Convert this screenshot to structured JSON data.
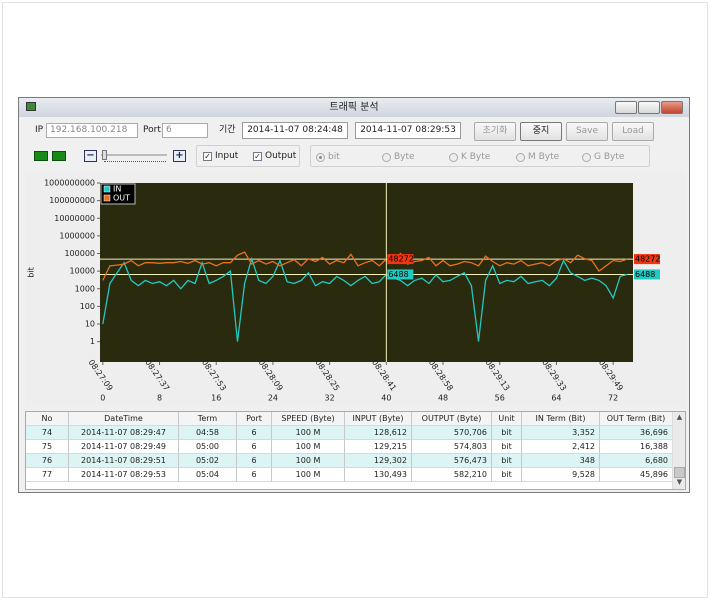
{
  "window": {
    "title": "트래픽 분석"
  },
  "controls": {
    "ip_label": "IP",
    "ip": "192.168.100.218",
    "port_label": "Port",
    "port": "6",
    "period_label": "기간",
    "start": "2014-11-07 08:24:48",
    "end": "2014-11-07 08:29:53",
    "buttons": [
      "초기화",
      "중지",
      "Save",
      "Load"
    ],
    "checkboxes": [
      "Input",
      "Output"
    ],
    "units": [
      "bit",
      "Byte",
      "K Byte",
      "M Byte",
      "G Byte"
    ]
  },
  "chart_data": {
    "type": "line",
    "ylabel": "bit",
    "log_y": true,
    "grid": false,
    "legend": "upper left",
    "background": "#2a2a0e",
    "cursor_x": 40,
    "x": [
      0,
      1,
      2,
      3,
      4,
      5,
      6,
      7,
      8,
      9,
      10,
      11,
      12,
      13,
      14,
      15,
      16,
      17,
      18,
      19,
      20,
      21,
      22,
      23,
      24,
      25,
      26,
      27,
      28,
      29,
      30,
      31,
      32,
      33,
      34,
      35,
      36,
      37,
      38,
      39,
      40,
      41,
      42,
      43,
      44,
      45,
      46,
      47,
      48,
      49,
      50,
      51,
      52,
      53,
      54,
      55,
      56,
      57,
      58,
      59,
      60,
      61,
      62,
      63,
      64,
      65,
      66,
      67,
      68,
      69,
      70,
      71,
      72,
      73,
      74
    ],
    "xlim": [
      -0.4,
      74.8
    ],
    "xticks": [
      0,
      8,
      16,
      24,
      32,
      40,
      48,
      56,
      64,
      72
    ],
    "xtick_times": [
      "08:27:09",
      "08:27:37",
      "08:27:53",
      "08:28:09",
      "08:28:25",
      "08:28:41",
      "08:28:58",
      "08:29:13",
      "08:29:33",
      "08:29:49"
    ],
    "ylim": [
      0.07,
      1000000000
    ],
    "yticks": [
      1,
      10,
      100,
      1000,
      10000,
      100000,
      1000000,
      10000000,
      100000000,
      1000000000
    ],
    "series": [
      {
        "name": "IN",
        "color": "#22c9c1",
        "values": [
          10,
          2000,
          8000,
          30000,
          3000,
          1500,
          3000,
          2000,
          2500,
          1500,
          3000,
          1000,
          3000,
          2000,
          30000,
          2000,
          3000,
          5000,
          10000,
          1,
          2000,
          50000,
          3000,
          2000,
          5000,
          40000,
          2500,
          2000,
          3000,
          8000,
          1500,
          2500,
          2000,
          5000,
          3000,
          1500,
          3000,
          5000,
          2000,
          2500,
          6488,
          4000,
          3000,
          1500,
          3000,
          4000,
          2000,
          6000,
          2500,
          3000,
          5000,
          8000,
          1500,
          1,
          3000,
          20000,
          2000,
          3000,
          2500,
          5000,
          2000,
          2500,
          3000,
          1500,
          4000,
          40000,
          8000,
          5000,
          3000,
          4000,
          3000,
          1500,
          300,
          5000,
          6488
        ]
      },
      {
        "name": "OUT",
        "color": "#e8711f",
        "values": [
          3000,
          20000,
          22000,
          25000,
          40000,
          20000,
          30000,
          30000,
          28000,
          30000,
          30000,
          35000,
          28000,
          40000,
          25000,
          30000,
          20000,
          30000,
          30000,
          80000,
          120000,
          25000,
          40000,
          25000,
          35000,
          20000,
          30000,
          45000,
          20000,
          50000,
          35000,
          60000,
          25000,
          40000,
          30000,
          90000,
          20000,
          30000,
          40000,
          20000,
          48272,
          40000,
          100000,
          25000,
          35000,
          40000,
          60000,
          20000,
          40000,
          20000,
          25000,
          35000,
          30000,
          20000,
          70000,
          35000,
          20000,
          30000,
          25000,
          40000,
          20000,
          25000,
          30000,
          20000,
          40000,
          50000,
          30000,
          80000,
          50000,
          40000,
          10000,
          20000,
          40000,
          35000,
          48272
        ]
      }
    ]
  },
  "table": {
    "columns": [
      "No",
      "DateTime",
      "Term",
      "Port",
      "SPEED (Byte)",
      "INPUT (Byte)",
      "OUTPUT (Byte)",
      "Unit",
      "IN Term (Bit)",
      "OUT Term (Bit)"
    ],
    "rows": [
      [
        "74",
        "2014-11-07 08:29:47",
        "04:58",
        "6",
        "100 M",
        "128,612",
        "570,706",
        "bit",
        "3,352",
        "36,696"
      ],
      [
        "75",
        "2014-11-07 08:29:49",
        "05:00",
        "6",
        "100 M",
        "129,215",
        "574,803",
        "bit",
        "2,412",
        "16,388"
      ],
      [
        "76",
        "2014-11-07 08:29:51",
        "05:02",
        "6",
        "100 M",
        "129,302",
        "576,473",
        "bit",
        "348",
        "6,680"
      ],
      [
        "77",
        "2014-11-07 08:29:53",
        "05:04",
        "6",
        "100 M",
        "130,493",
        "582,210",
        "bit",
        "9,528",
        "45,896"
      ]
    ]
  }
}
